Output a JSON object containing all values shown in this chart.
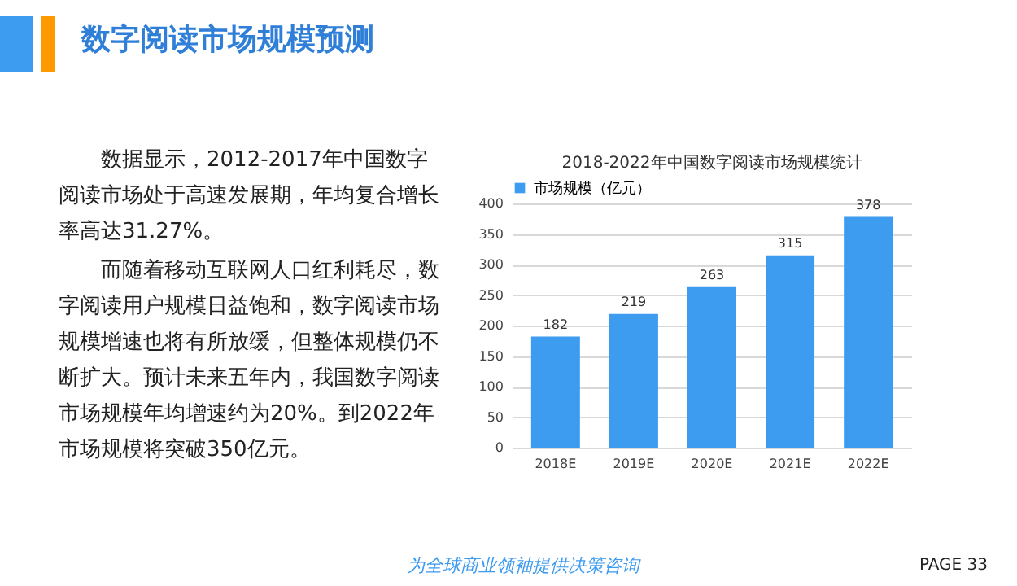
{
  "chart_data": {
    "type": "bar",
    "title": "2018-2022年中国数字阅读市场规模统计",
    "categories": [
      "2018E",
      "2019E",
      "2020E",
      "2021E",
      "2022E"
    ],
    "series": [
      {
        "name": "市场规模（亿元）",
        "color": "#3d9bf0",
        "values": [
          182,
          219,
          263,
          315,
          378
        ]
      }
    ],
    "ylim": [
      0,
      400
    ],
    "yticks": [
      0,
      50,
      100,
      150,
      200,
      250,
      300,
      350,
      400
    ],
    "grid": "y",
    "legend": "top",
    "data_labels": true,
    "annotations": [
      "数字阅读市场规模预测",
      "数据显示，2012-2017年中国数字阅读市场处于高速发展期，年均复合增长率高达31.27%。",
      "而随着移动互联网人口红利耗尽，数字阅读用户规模日益饱和，数字阅读市场规模增速也将有所放缓，但整体规模仍不断扩大。预计未来五年内，我国数字阅读市场规模年均增速约为20%。到2022年市场规模将突破350亿元。",
      "为全球商业领袖提供决策咨询",
      "PAGE  33"
    ]
  }
}
